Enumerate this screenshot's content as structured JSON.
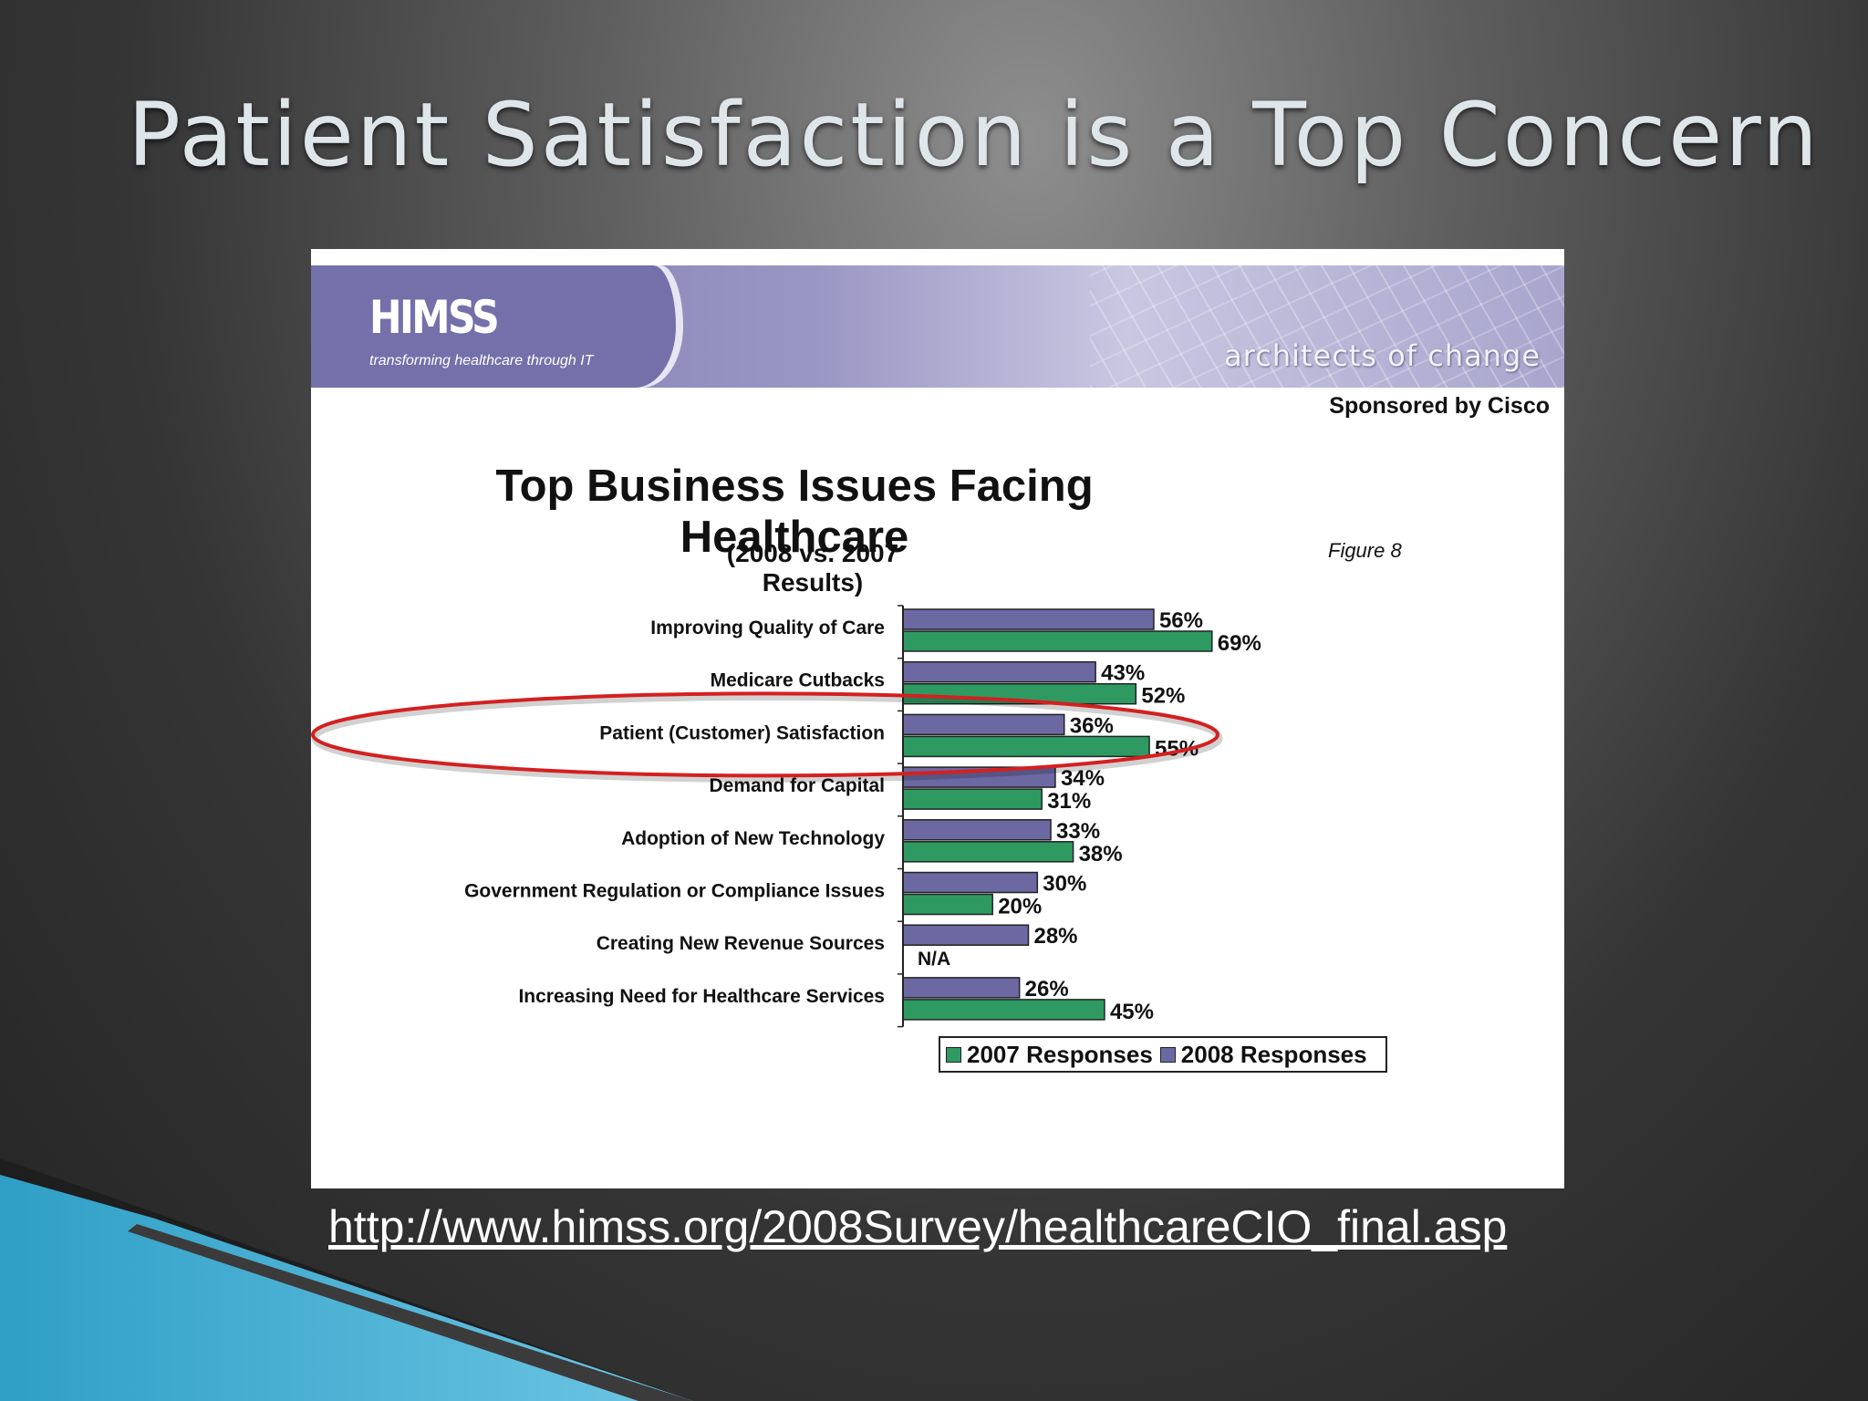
{
  "slide": {
    "title": "Patient Satisfaction is a Top Concern",
    "url": "http://www.himss.org/2008Survey/healthcareCIO_final.asp"
  },
  "banner": {
    "logo": "HIMSS",
    "tagline": "transforming healthcare through IT",
    "slogan": "architects of change"
  },
  "sponsor": "Sponsored by Cisco",
  "figure_label": "Figure 8",
  "chart_data": {
    "type": "bar",
    "orientation": "horizontal",
    "title": "Top Business Issues Facing Healthcare",
    "subtitle": "(2008 vs. 2007 Results)",
    "categories": [
      "Improving Quality of Care",
      "Medicare Cutbacks",
      "Patient (Customer) Satisfaction",
      "Demand for Capital",
      "Adoption of New Technology",
      "Government Regulation or Compliance Issues",
      "Creating New Revenue Sources",
      "Increasing Need for Healthcare Services"
    ],
    "series": [
      {
        "name": "2008 Responses",
        "color": "#6b68a2",
        "values": [
          56,
          43,
          36,
          34,
          33,
          30,
          28,
          26
        ],
        "labels": [
          "56%",
          "43%",
          "36%",
          "34%",
          "33%",
          "30%",
          "28%",
          "26%"
        ]
      },
      {
        "name": "2007 Responses",
        "color": "#2e9a62",
        "values": [
          69,
          52,
          55,
          31,
          38,
          20,
          null,
          45
        ],
        "labels": [
          "69%",
          "52%",
          "55%",
          "31%",
          "38%",
          "20%",
          "N/A",
          "45%"
        ]
      }
    ],
    "xlim": [
      0,
      100
    ],
    "legend_position": "bottom",
    "legend_order": [
      "2007 Responses",
      "2008 Responses"
    ],
    "highlighted_category": "Patient (Customer) Satisfaction",
    "highlight_color": "#d42020"
  }
}
